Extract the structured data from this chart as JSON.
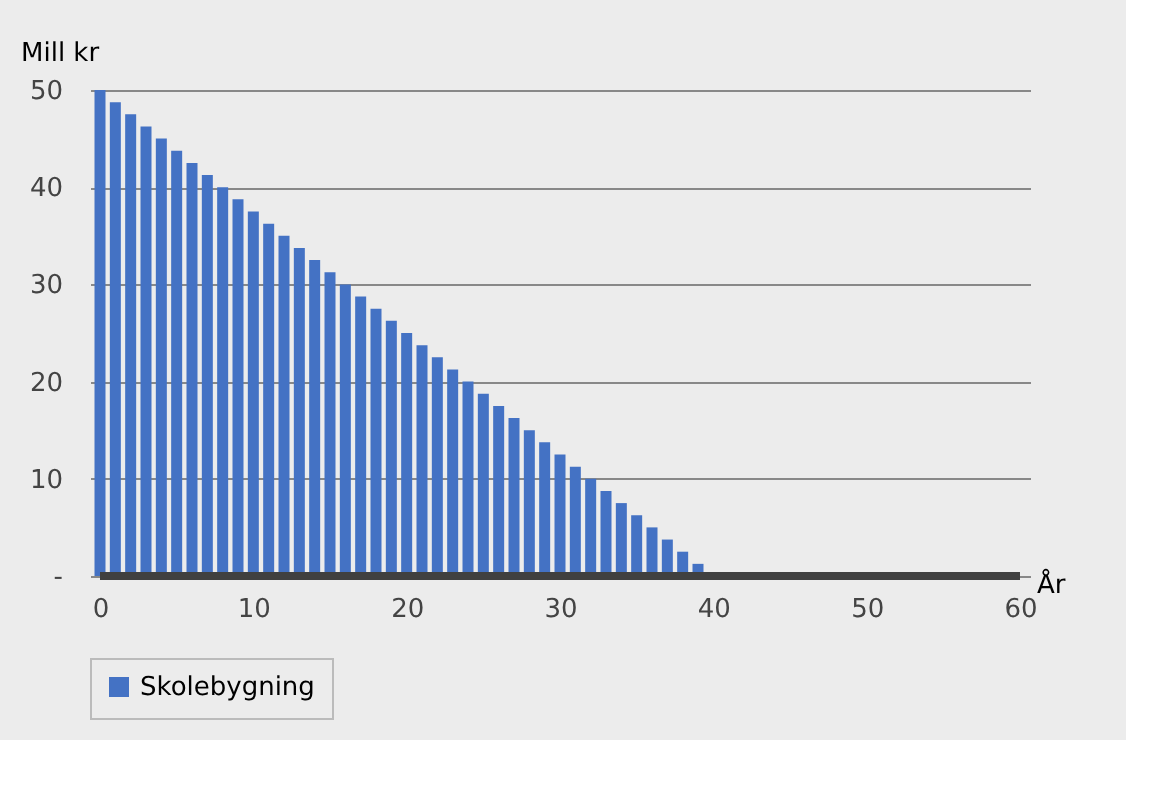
{
  "chart_data": {
    "type": "bar",
    "x": [
      0,
      1,
      2,
      3,
      4,
      5,
      6,
      7,
      8,
      9,
      10,
      11,
      12,
      13,
      14,
      15,
      16,
      17,
      18,
      19,
      20,
      21,
      22,
      23,
      24,
      25,
      26,
      27,
      28,
      29,
      30,
      31,
      32,
      33,
      34,
      35,
      36,
      37,
      38,
      39
    ],
    "series": [
      {
        "name": "Skolebygning",
        "color": "#4472c4",
        "values": [
          50,
          48.75,
          47.5,
          46.25,
          45,
          43.75,
          42.5,
          41.25,
          40,
          38.75,
          37.5,
          36.25,
          35,
          33.75,
          32.5,
          31.25,
          30,
          28.75,
          27.5,
          26.25,
          25,
          23.75,
          22.5,
          21.25,
          20,
          18.75,
          17.5,
          16.25,
          15,
          13.75,
          12.5,
          11.25,
          10,
          8.75,
          7.5,
          6.25,
          5,
          3.75,
          2.5,
          1.25
        ]
      }
    ],
    "xlabel": "År",
    "ylabel": "Mill kr",
    "xlim": [
      0,
      60
    ],
    "xticks": [
      0,
      10,
      20,
      30,
      40,
      50,
      60
    ],
    "ylim": [
      0,
      50
    ],
    "yticks": [
      {
        "value": 0,
        "label": "-"
      },
      10,
      20,
      30,
      40,
      50
    ],
    "grid": "y",
    "legend": "bottom"
  }
}
